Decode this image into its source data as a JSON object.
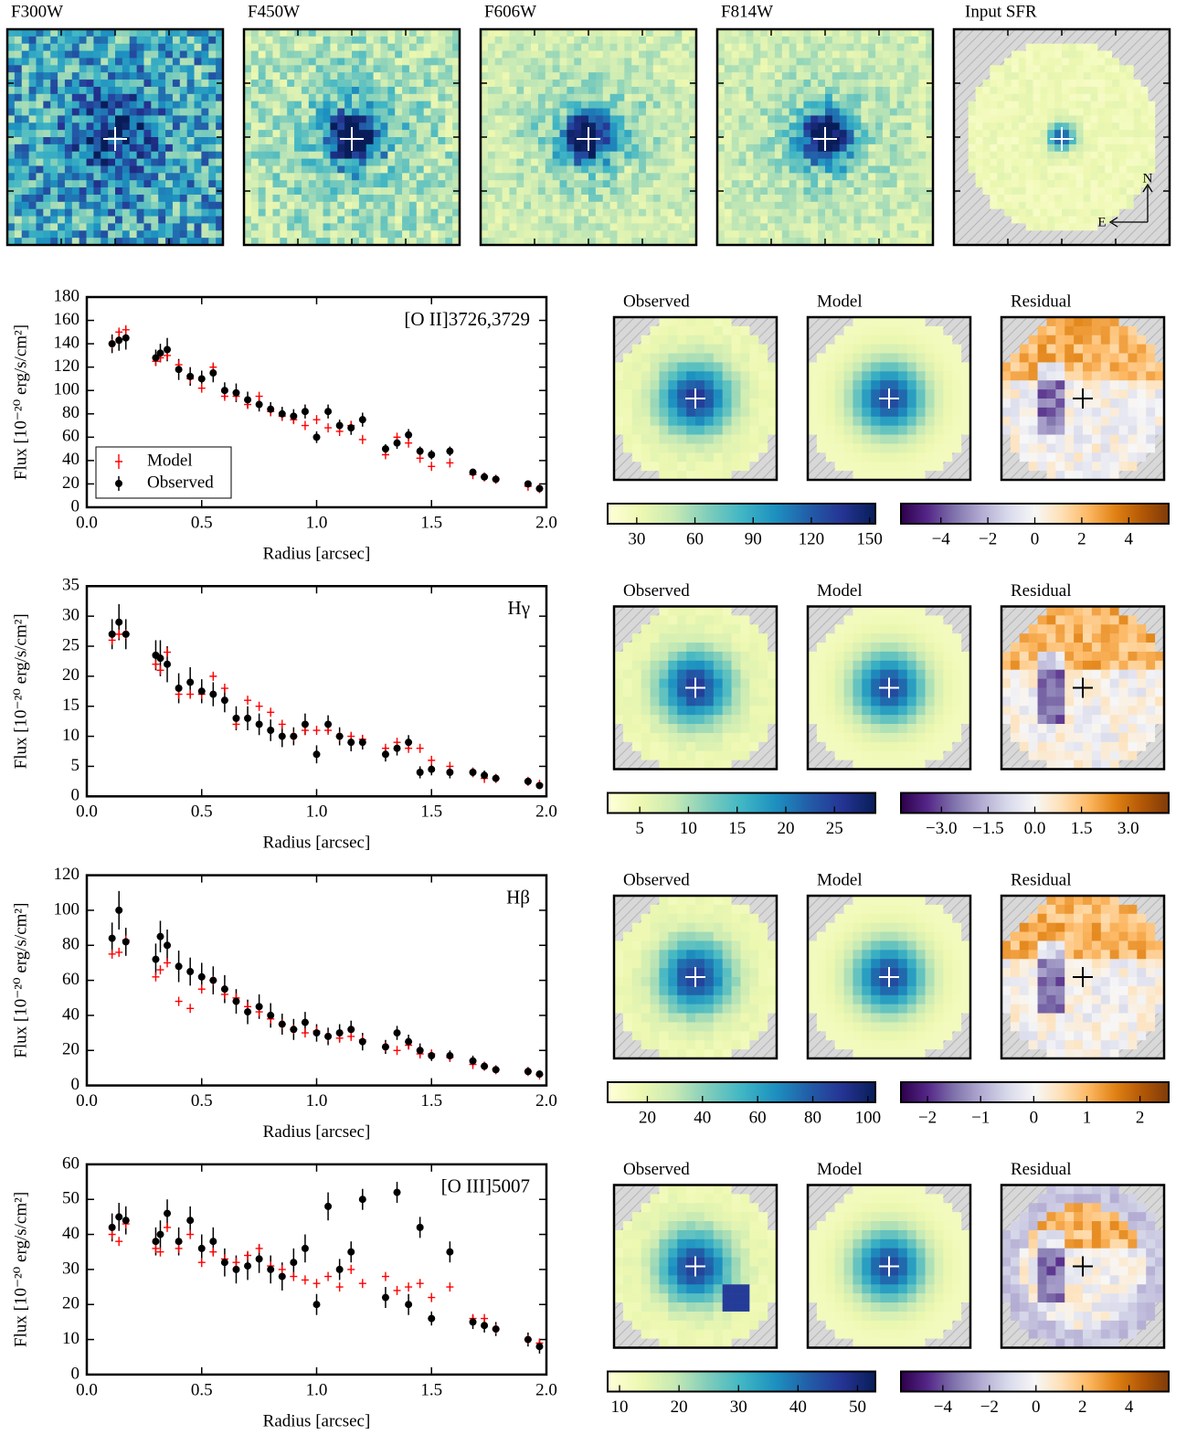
{
  "cutouts": [
    {
      "title": "F300W"
    },
    {
      "title": "F450W"
    },
    {
      "title": "F606W"
    },
    {
      "title": "F814W"
    },
    {
      "title": "Input SFR"
    }
  ],
  "compass": {
    "north": "N",
    "east": "E"
  },
  "colormaps": {
    "flux": [
      "#ffffd9",
      "#edf8b1",
      "#c7e9b4",
      "#7fcdbb",
      "#41b6c4",
      "#1d91c0",
      "#225ea8",
      "#253494",
      "#081d58"
    ],
    "residual": [
      "#2d004b",
      "#542788",
      "#8073ac",
      "#b2abd2",
      "#d8daeb",
      "#f7f7f7",
      "#fee0b6",
      "#fdb863",
      "#e08214",
      "#b35806",
      "#7f3b08"
    ]
  },
  "chart_data": [
    {
      "type": "scatter",
      "annotation": "[O II]3726,3729",
      "xlabel": "Radius [arcsec]",
      "ylabel": "Flux [10⁻²⁰ erg/s/cm²]",
      "xlim": [
        0,
        2
      ],
      "xticks": [
        {
          "value": 0,
          "label": "0.0"
        },
        0.5,
        {
          "value": 1,
          "label": "1.0"
        },
        1.5,
        {
          "value": 2,
          "label": "2.0"
        }
      ],
      "ylim": [
        0,
        180
      ],
      "yticks": [
        0,
        20,
        40,
        60,
        80,
        100,
        120,
        140,
        160,
        180
      ],
      "legend": "lower left",
      "x": [
        0.11,
        0.14,
        0.17,
        0.3,
        0.32,
        0.35,
        0.4,
        0.45,
        0.5,
        0.55,
        0.6,
        0.65,
        0.7,
        0.75,
        0.8,
        0.85,
        0.9,
        0.95,
        1.0,
        1.05,
        1.1,
        1.15,
        1.2,
        1.3,
        1.35,
        1.4,
        1.45,
        1.5,
        1.58,
        1.68,
        1.73,
        1.78,
        1.92,
        1.97
      ],
      "series": [
        {
          "name": "Model",
          "color": "#ff0000",
          "values": [
            140,
            150,
            152,
            125,
            128,
            130,
            122,
            110,
            102,
            120,
            95,
            95,
            88,
            95,
            82,
            78,
            75,
            70,
            75,
            68,
            65,
            70,
            58,
            45,
            60,
            55,
            42,
            35,
            38,
            28,
            26,
            24,
            18,
            16
          ]
        },
        {
          "name": "Observed",
          "color": "#000000",
          "values": [
            140,
            143,
            145,
            128,
            132,
            135,
            118,
            112,
            110,
            115,
            100,
            98,
            92,
            88,
            84,
            80,
            78,
            82,
            60,
            82,
            70,
            68,
            75,
            50,
            55,
            62,
            48,
            45,
            48,
            30,
            26,
            24,
            20,
            16
          ],
          "errors": [
            8,
            9,
            10,
            7,
            8,
            10,
            9,
            8,
            7,
            8,
            7,
            8,
            7,
            6,
            6,
            6,
            6,
            6,
            5,
            6,
            5,
            6,
            6,
            4,
            5,
            5,
            4,
            4,
            4,
            3,
            3,
            3,
            3,
            3
          ]
        }
      ],
      "maps": [
        "Observed",
        "Model",
        "Residual"
      ],
      "colorbars": [
        {
          "cmap": "flux",
          "lim": [
            15,
            153
          ],
          "ticks": [
            30,
            60,
            90,
            120,
            150
          ]
        },
        {
          "cmap": "residual",
          "lim": [
            -5.7,
            5.7
          ],
          "ticks": [
            {
              "value": -4,
              "label": "−4"
            },
            {
              "value": -2,
              "label": "−2"
            },
            0,
            2,
            4
          ]
        }
      ]
    },
    {
      "type": "scatter",
      "annotation": "Hγ",
      "xlabel": "Radius [arcsec]",
      "ylabel": "Flux [10⁻²⁰ erg/s/cm²]",
      "xlim": [
        0,
        2
      ],
      "xticks": [
        {
          "value": 0,
          "label": "0.0"
        },
        0.5,
        {
          "value": 1,
          "label": "1.0"
        },
        1.5,
        {
          "value": 2,
          "label": "2.0"
        }
      ],
      "ylim": [
        0,
        35
      ],
      "yticks": [
        0,
        5,
        10,
        15,
        20,
        25,
        30,
        35
      ],
      "x": [
        0.11,
        0.14,
        0.17,
        0.3,
        0.32,
        0.35,
        0.4,
        0.45,
        0.5,
        0.55,
        0.6,
        0.65,
        0.7,
        0.75,
        0.8,
        0.85,
        0.9,
        0.95,
        1.0,
        1.05,
        1.1,
        1.15,
        1.2,
        1.3,
        1.35,
        1.4,
        1.45,
        1.5,
        1.58,
        1.68,
        1.73,
        1.78,
        1.92,
        1.97
      ],
      "series": [
        {
          "color": "#ff0000",
          "values": [
            26,
            27,
            27,
            22,
            21,
            24,
            17,
            17,
            17,
            20,
            18,
            12,
            16,
            15,
            14,
            12,
            10,
            11,
            11,
            11,
            10,
            10,
            9.5,
            8,
            9,
            8,
            8,
            6,
            5,
            4,
            3,
            3,
            2.5,
            2
          ]
        },
        {
          "color": "#000000",
          "values": [
            27,
            29,
            27,
            23.5,
            23,
            22,
            18,
            19,
            17.5,
            17,
            16,
            13,
            13,
            12,
            11,
            10,
            10,
            12,
            7,
            12,
            10,
            9,
            9,
            7,
            8,
            9,
            4,
            4.5,
            4,
            4,
            3.5,
            3,
            2.5,
            1.8
          ],
          "errors": [
            2.5,
            3,
            2.5,
            2.5,
            3,
            3,
            2.5,
            2.5,
            2,
            2,
            2,
            2,
            2,
            1.8,
            1.8,
            1.8,
            1.5,
            1.8,
            1.5,
            1.5,
            1.5,
            1.5,
            1.2,
            1.2,
            1.2,
            1.2,
            1,
            1,
            1,
            0.8,
            0.8,
            0.7,
            0.6,
            0.5
          ]
        }
      ],
      "maps": [
        "Observed",
        "Model",
        "Residual"
      ],
      "colorbars": [
        {
          "cmap": "flux",
          "lim": [
            1.7,
            29.2
          ],
          "ticks": [
            5,
            10,
            15,
            20,
            25
          ]
        },
        {
          "cmap": "residual",
          "lim": [
            -4.3,
            4.3
          ],
          "ticks": [
            {
              "value": -3,
              "label": "−3.0"
            },
            {
              "value": -1.5,
              "label": "−1.5"
            },
            {
              "value": 0,
              "label": "0.0"
            },
            1.5,
            {
              "value": 3,
              "label": "3.0"
            }
          ]
        }
      ]
    },
    {
      "type": "scatter",
      "annotation": "Hβ",
      "xlabel": "Radius [arcsec]",
      "ylabel": "Flux [10⁻²⁰ erg/s/cm²]",
      "xlim": [
        0,
        2
      ],
      "xticks": [
        {
          "value": 0,
          "label": "0.0"
        },
        0.5,
        {
          "value": 1,
          "label": "1.0"
        },
        1.5,
        {
          "value": 2,
          "label": "2.0"
        }
      ],
      "ylim": [
        0,
        120
      ],
      "yticks": [
        0,
        20,
        40,
        60,
        80,
        100,
        120
      ],
      "x": [
        0.11,
        0.14,
        0.17,
        0.3,
        0.32,
        0.35,
        0.4,
        0.45,
        0.5,
        0.55,
        0.6,
        0.65,
        0.7,
        0.75,
        0.8,
        0.85,
        0.9,
        0.95,
        1.0,
        1.05,
        1.1,
        1.15,
        1.2,
        1.3,
        1.35,
        1.4,
        1.45,
        1.5,
        1.58,
        1.68,
        1.73,
        1.78,
        1.92,
        1.97
      ],
      "series": [
        {
          "color": "#ff0000",
          "values": [
            75,
            76,
            83,
            62,
            66,
            70,
            48,
            44,
            55,
            60,
            52,
            50,
            45,
            42,
            38,
            35,
            32,
            30,
            31,
            28,
            27,
            28,
            26,
            22,
            20,
            23,
            18,
            18,
            16,
            12,
            11,
            9,
            8,
            6
          ]
        },
        {
          "color": "#000000",
          "values": [
            84,
            100,
            82,
            72,
            85,
            80,
            68,
            65,
            62,
            60,
            55,
            48,
            42,
            45,
            40,
            35,
            32,
            36,
            30,
            28,
            30,
            32,
            25,
            22,
            30,
            25,
            20,
            17,
            17,
            14,
            11,
            9,
            8,
            6.5
          ],
          "errors": [
            9,
            11,
            8,
            9,
            9,
            9,
            9,
            8,
            8,
            8,
            8,
            7,
            7,
            7,
            7,
            6,
            6,
            6,
            5,
            5,
            5,
            5,
            5,
            4,
            4,
            4,
            4,
            3,
            3,
            3,
            2,
            2,
            2,
            1.5
          ]
        }
      ],
      "maps": [
        "Observed",
        "Model",
        "Residual"
      ],
      "colorbars": [
        {
          "cmap": "flux",
          "lim": [
            5.6,
            102.7
          ],
          "ticks": [
            20,
            40,
            60,
            80,
            100
          ]
        },
        {
          "cmap": "residual",
          "lim": [
            -2.5,
            2.54
          ],
          "ticks": [
            {
              "value": -2,
              "label": "−2"
            },
            {
              "value": -1,
              "label": "−1"
            },
            0,
            1,
            2
          ]
        }
      ]
    },
    {
      "type": "scatter",
      "annotation": "[O III]5007",
      "xlabel": "Radius [arcsec]",
      "ylabel": "Flux [10⁻²⁰ erg/s/cm²]",
      "xlim": [
        0,
        2
      ],
      "xticks": [
        {
          "value": 0,
          "label": "0.0"
        },
        0.5,
        {
          "value": 1,
          "label": "1.0"
        },
        1.5,
        {
          "value": 2,
          "label": "2.0"
        }
      ],
      "ylim": [
        0,
        60
      ],
      "yticks": [
        0,
        10,
        20,
        30,
        40,
        50,
        60
      ],
      "x": [
        0.11,
        0.14,
        0.17,
        0.3,
        0.32,
        0.35,
        0.4,
        0.45,
        0.5,
        0.55,
        0.6,
        0.65,
        0.7,
        0.75,
        0.8,
        0.85,
        0.9,
        0.95,
        1.0,
        1.05,
        1.1,
        1.15,
        1.2,
        1.3,
        1.35,
        1.4,
        1.45,
        1.5,
        1.58,
        1.68,
        1.73,
        1.78,
        1.92,
        1.97
      ],
      "series": [
        {
          "color": "#ff0000",
          "values": [
            40,
            38,
            43,
            36,
            35,
            42,
            36,
            40,
            32,
            35,
            33,
            32,
            34,
            36,
            31,
            30,
            28,
            27,
            26,
            28,
            25,
            30,
            26,
            28,
            24,
            25,
            26,
            22,
            25,
            16,
            16,
            13,
            10,
            9
          ]
        },
        {
          "color": "#000000",
          "values": [
            42,
            45,
            44,
            38,
            40,
            46,
            38,
            44,
            36,
            38,
            32,
            30,
            31,
            33,
            30,
            28,
            32,
            36,
            20,
            48,
            30,
            35,
            50,
            22,
            52,
            20,
            42,
            16,
            35,
            15,
            14,
            13,
            10,
            8
          ],
          "errors": [
            4,
            4,
            4,
            4,
            4,
            4,
            4,
            4,
            4,
            4,
            4,
            4,
            4,
            4,
            4,
            4,
            4,
            4,
            3,
            4,
            3,
            3,
            3,
            3,
            3,
            3,
            3,
            2,
            3,
            2,
            2,
            2,
            2,
            2
          ]
        }
      ],
      "maps": [
        "Observed",
        "Model",
        "Residual"
      ],
      "colorbars": [
        {
          "cmap": "flux",
          "lim": [
            8,
            53
          ],
          "ticks": [
            10,
            20,
            30,
            40,
            50
          ]
        },
        {
          "cmap": "residual",
          "lim": [
            -5.8,
            5.7
          ],
          "ticks": [
            {
              "value": -4,
              "label": "−4"
            },
            {
              "value": -2,
              "label": "−2"
            },
            0,
            2,
            4
          ]
        }
      ]
    }
  ]
}
